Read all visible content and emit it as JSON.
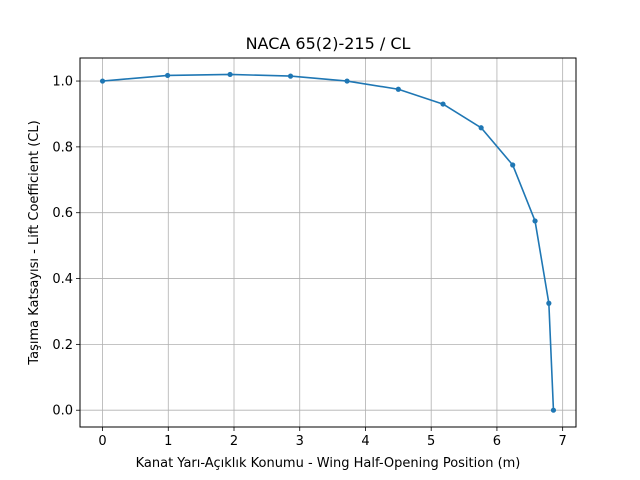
{
  "chart_data": {
    "type": "line",
    "title": "NACA 65(2)-215 / CL",
    "xlabel": "Kanat Yarı-Açıklık Konumu - Wing Half-Opening Position (m)",
    "ylabel": "Taşıma Katsayısı - Lift Coefficient (CL)",
    "xlim": [
      -0.343,
      7.203
    ],
    "ylim": [
      -0.051,
      1.07
    ],
    "xticks": [
      0,
      1,
      2,
      3,
      4,
      5,
      6,
      7
    ],
    "xtick_labels": [
      "0",
      "1",
      "2",
      "3",
      "4",
      "5",
      "6",
      "7"
    ],
    "yticks": [
      0.0,
      0.2,
      0.4,
      0.6,
      0.8,
      1.0
    ],
    "ytick_labels": [
      "0.0",
      "0.2",
      "0.4",
      "0.6",
      "0.8",
      "1.0"
    ],
    "grid": true,
    "series": [
      {
        "color": "#1f77b4",
        "marker": "circle",
        "points": [
          [
            0.0,
            1.0
          ],
          [
            0.99,
            1.017
          ],
          [
            1.94,
            1.02
          ],
          [
            2.86,
            1.015
          ],
          [
            3.72,
            1.0
          ],
          [
            4.5,
            0.975
          ],
          [
            5.18,
            0.93
          ],
          [
            5.76,
            0.858
          ],
          [
            6.24,
            0.745
          ],
          [
            6.58,
            0.575
          ],
          [
            6.79,
            0.325
          ],
          [
            6.86,
            0.0
          ]
        ]
      }
    ]
  }
}
